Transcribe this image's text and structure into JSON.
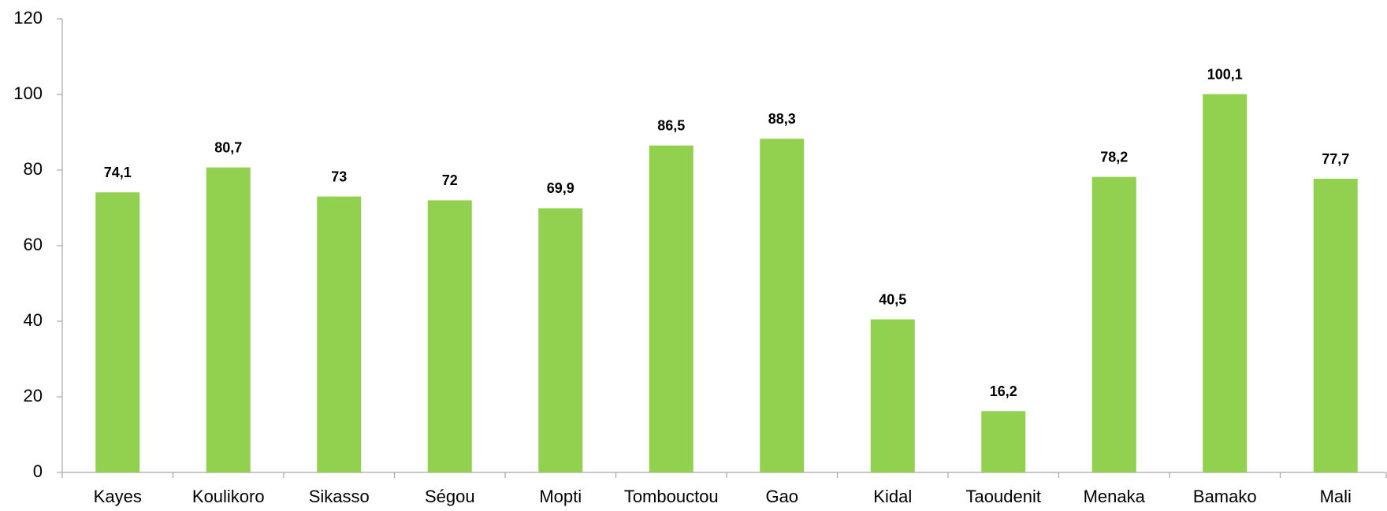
{
  "chart_data": {
    "type": "bar",
    "categories": [
      "Kayes",
      "Koulikoro",
      "Sikasso",
      "Ségou",
      "Mopti",
      "Tombouctou",
      "Gao",
      "Kidal",
      "Taoudenit",
      "Menaka",
      "Bamako",
      "Mali"
    ],
    "values": [
      74.1,
      80.7,
      73,
      72,
      69.9,
      86.5,
      88.3,
      40.5,
      16.2,
      78.2,
      100.1,
      77.7
    ],
    "value_labels": [
      "74,1",
      "80,7",
      "73",
      "72",
      "69,9",
      "86,5",
      "88,3",
      "40,5",
      "16,2",
      "78,2",
      "100,1",
      "77,7"
    ],
    "color": "#92d050",
    "ylim": [
      0,
      120
    ],
    "yticks": [
      0,
      20,
      40,
      60,
      80,
      100,
      120
    ],
    "grid": false
  }
}
